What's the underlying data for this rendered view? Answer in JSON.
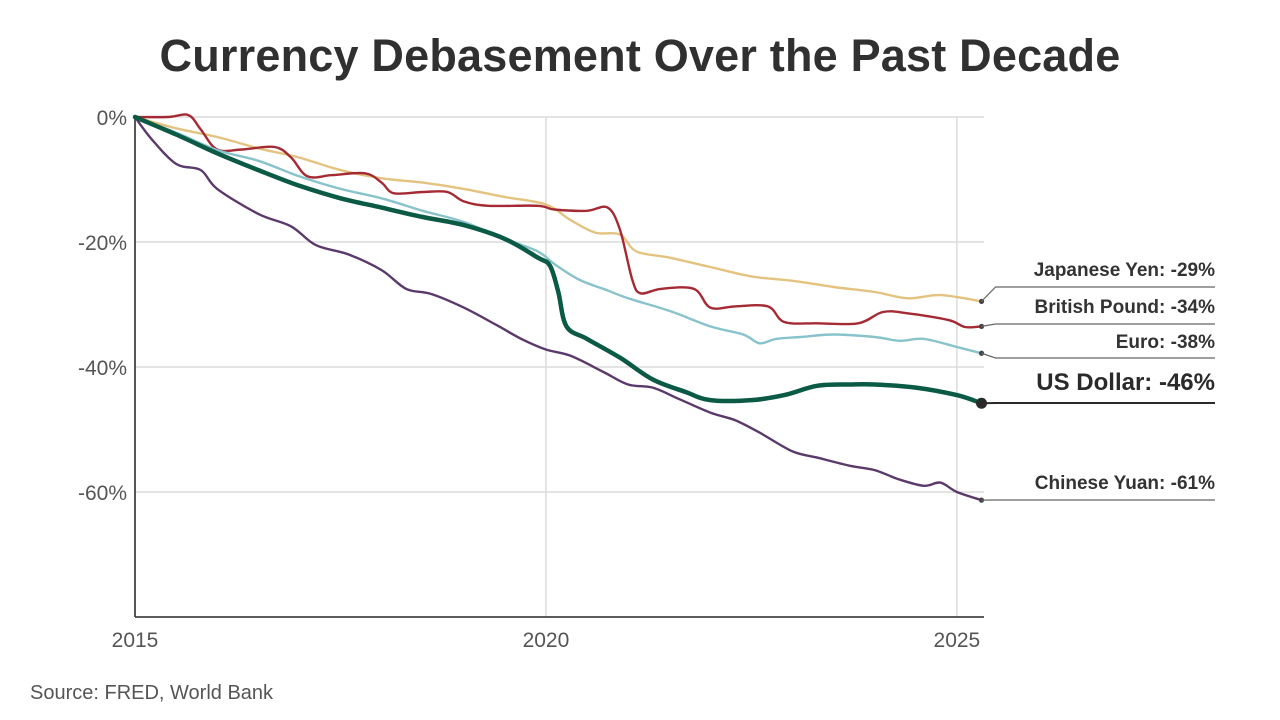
{
  "chart_data": {
    "type": "line",
    "title": "Currency Debasement Over the Past Decade",
    "source": "Source: FRED, World Bank",
    "xlabel": "",
    "ylabel": "",
    "xlim": [
      2015,
      2025.33
    ],
    "ylim": [
      -80,
      0
    ],
    "x_ticks": [
      {
        "value": 2015,
        "label": "2015"
      },
      {
        "value": 2020,
        "label": "2020"
      },
      {
        "value": 2025,
        "label": "2025"
      }
    ],
    "y_ticks": [
      {
        "value": 0,
        "label": "0%"
      },
      {
        "value": -20,
        "label": "-20%"
      },
      {
        "value": -40,
        "label": "-40%"
      },
      {
        "value": -60,
        "label": "-60%"
      }
    ],
    "grid": true,
    "series": [
      {
        "name": "Japanese Yen",
        "label": "Japanese Yen: -29%",
        "color": "#e3c37f",
        "emphasis": false,
        "points": [
          [
            2015,
            0
          ],
          [
            2015.5,
            -1.8
          ],
          [
            2016,
            -3.2
          ],
          [
            2016.5,
            -5
          ],
          [
            2017,
            -6.5
          ],
          [
            2017.5,
            -8.5
          ],
          [
            2018,
            -9.8
          ],
          [
            2018.5,
            -10.5
          ],
          [
            2019,
            -11.5
          ],
          [
            2019.5,
            -12.8
          ],
          [
            2020,
            -14
          ],
          [
            2020.3,
            -16.5
          ],
          [
            2020.6,
            -18.5
          ],
          [
            2020.9,
            -18.8
          ],
          [
            2021.1,
            -21.5
          ],
          [
            2021.5,
            -22.5
          ],
          [
            2022,
            -24
          ],
          [
            2022.5,
            -25.5
          ],
          [
            2023,
            -26.2
          ],
          [
            2023.5,
            -27.2
          ],
          [
            2024,
            -28
          ],
          [
            2024.4,
            -29
          ],
          [
            2024.8,
            -28.5
          ],
          [
            2025.3,
            -29.5
          ]
        ]
      },
      {
        "name": "British Pound",
        "label": "British Pound: -34%",
        "color": "#a42a33",
        "emphasis": false,
        "points": [
          [
            2015,
            0
          ],
          [
            2015.4,
            0
          ],
          [
            2015.65,
            0.3
          ],
          [
            2015.8,
            -2
          ],
          [
            2016,
            -5.2
          ],
          [
            2016.3,
            -5.2
          ],
          [
            2016.7,
            -4.8
          ],
          [
            2016.9,
            -6.5
          ],
          [
            2017.1,
            -9.5
          ],
          [
            2017.4,
            -9.3
          ],
          [
            2017.8,
            -9
          ],
          [
            2018,
            -10.5
          ],
          [
            2018.15,
            -12.2
          ],
          [
            2018.5,
            -12
          ],
          [
            2018.8,
            -12
          ],
          [
            2019,
            -13.5
          ],
          [
            2019.3,
            -14.2
          ],
          [
            2019.9,
            -14.2
          ],
          [
            2020.1,
            -14.8
          ],
          [
            2020.5,
            -15
          ],
          [
            2020.75,
            -14.5
          ],
          [
            2020.9,
            -18
          ],
          [
            2021.05,
            -26
          ],
          [
            2021.15,
            -28.2
          ],
          [
            2021.4,
            -27.5
          ],
          [
            2021.8,
            -27.5
          ],
          [
            2022,
            -30.5
          ],
          [
            2022.3,
            -30.3
          ],
          [
            2022.7,
            -30.3
          ],
          [
            2022.9,
            -32.8
          ],
          [
            2023.3,
            -33
          ],
          [
            2023.8,
            -33
          ],
          [
            2024.1,
            -31.2
          ],
          [
            2024.4,
            -31.4
          ],
          [
            2024.9,
            -32.5
          ],
          [
            2025.1,
            -33.6
          ],
          [
            2025.3,
            -33.5
          ]
        ]
      },
      {
        "name": "Euro",
        "label": "Euro: -38%",
        "color": "#88c3cc",
        "emphasis": false,
        "points": [
          [
            2015,
            0
          ],
          [
            2015.5,
            -2.5
          ],
          [
            2016,
            -5.3
          ],
          [
            2016.5,
            -7
          ],
          [
            2017,
            -9.5
          ],
          [
            2017.5,
            -11.5
          ],
          [
            2018,
            -13
          ],
          [
            2018.5,
            -15
          ],
          [
            2019,
            -16.8
          ],
          [
            2019.5,
            -19.5
          ],
          [
            2019.9,
            -21.5
          ],
          [
            2020.1,
            -23.5
          ],
          [
            2020.4,
            -26
          ],
          [
            2020.7,
            -27.5
          ],
          [
            2021,
            -29
          ],
          [
            2021.5,
            -31
          ],
          [
            2022,
            -33.5
          ],
          [
            2022.4,
            -34.8
          ],
          [
            2022.6,
            -36.2
          ],
          [
            2022.8,
            -35.5
          ],
          [
            2023.1,
            -35.2
          ],
          [
            2023.5,
            -34.8
          ],
          [
            2024,
            -35.2
          ],
          [
            2024.3,
            -35.8
          ],
          [
            2024.6,
            -35.5
          ],
          [
            2025,
            -36.8
          ],
          [
            2025.3,
            -37.8
          ]
        ]
      },
      {
        "name": "US Dollar",
        "label": "US Dollar: -46%",
        "color": "#0b5a45",
        "emphasis": true,
        "points": [
          [
            2015,
            0
          ],
          [
            2015.5,
            -2.8
          ],
          [
            2016,
            -5.8
          ],
          [
            2016.5,
            -8.5
          ],
          [
            2017,
            -11
          ],
          [
            2017.5,
            -13
          ],
          [
            2018,
            -14.5
          ],
          [
            2018.5,
            -16
          ],
          [
            2019,
            -17.3
          ],
          [
            2019.5,
            -19.5
          ],
          [
            2019.9,
            -22.5
          ],
          [
            2020.05,
            -23.8
          ],
          [
            2020.15,
            -28
          ],
          [
            2020.25,
            -33.5
          ],
          [
            2020.5,
            -35.5
          ],
          [
            2020.9,
            -38.5
          ],
          [
            2021.3,
            -42
          ],
          [
            2021.7,
            -44
          ],
          [
            2022,
            -45.3
          ],
          [
            2022.5,
            -45.3
          ],
          [
            2022.9,
            -44.5
          ],
          [
            2023.3,
            -43
          ],
          [
            2023.7,
            -42.8
          ],
          [
            2024,
            -42.8
          ],
          [
            2024.5,
            -43.3
          ],
          [
            2025,
            -44.5
          ],
          [
            2025.3,
            -45.8
          ]
        ]
      },
      {
        "name": "Chinese Yuan",
        "label": "Chinese Yuan: -61%",
        "color": "#5b3a6b",
        "emphasis": false,
        "points": [
          [
            2015,
            0
          ],
          [
            2015.2,
            -3.5
          ],
          [
            2015.5,
            -7.5
          ],
          [
            2015.8,
            -8.5
          ],
          [
            2016,
            -11.5
          ],
          [
            2016.5,
            -15.5
          ],
          [
            2016.9,
            -17.5
          ],
          [
            2017.2,
            -20.5
          ],
          [
            2017.6,
            -22
          ],
          [
            2018,
            -24.5
          ],
          [
            2018.3,
            -27.5
          ],
          [
            2018.6,
            -28.3
          ],
          [
            2019,
            -30.5
          ],
          [
            2019.4,
            -33.3
          ],
          [
            2019.7,
            -35.5
          ],
          [
            2020,
            -37.2
          ],
          [
            2020.3,
            -38.2
          ],
          [
            2020.7,
            -40.8
          ],
          [
            2021,
            -42.8
          ],
          [
            2021.3,
            -43.3
          ],
          [
            2021.6,
            -45
          ],
          [
            2022,
            -47.3
          ],
          [
            2022.3,
            -48.5
          ],
          [
            2022.6,
            -50.5
          ],
          [
            2023,
            -53.5
          ],
          [
            2023.3,
            -54.5
          ],
          [
            2023.7,
            -55.8
          ],
          [
            2024,
            -56.5
          ],
          [
            2024.3,
            -58
          ],
          [
            2024.6,
            -59
          ],
          [
            2024.8,
            -58.5
          ],
          [
            2025,
            -60
          ],
          [
            2025.3,
            -61.3
          ]
        ]
      }
    ]
  }
}
